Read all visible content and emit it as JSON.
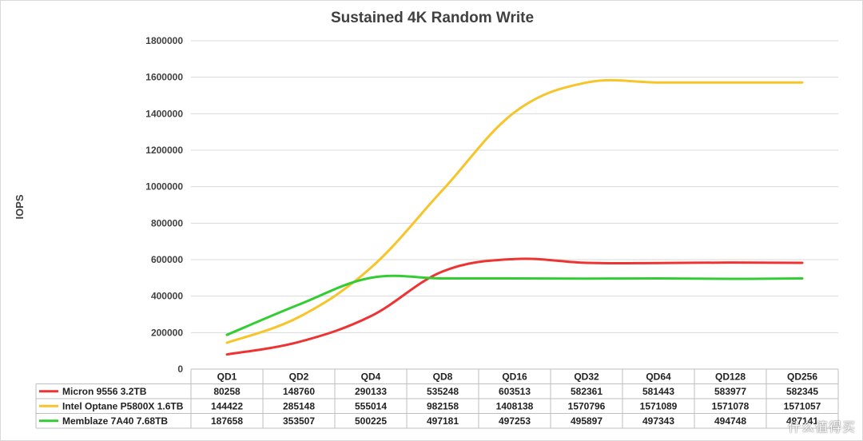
{
  "chart_data": {
    "type": "line",
    "title": "Sustained 4K Random Write",
    "xlabel": "",
    "ylabel": "IOPS",
    "ylim": [
      0,
      1800000
    ],
    "yticks": [
      0,
      200000,
      400000,
      600000,
      800000,
      1000000,
      1200000,
      1400000,
      1600000,
      1800000
    ],
    "grid": true,
    "legend": "data-table-left",
    "categories": [
      "QD1",
      "QD2",
      "QD4",
      "QD8",
      "QD16",
      "QD32",
      "QD64",
      "QD128",
      "QD256"
    ],
    "series": [
      {
        "name": "Micron 9556 3.2TB",
        "color": "#ee3333",
        "values": [
          80258,
          148760,
          290133,
          535248,
          603513,
          582361,
          581443,
          583977,
          582345
        ]
      },
      {
        "name": "Intel Optane P5800X 1.6TB",
        "color": "#f7c42a",
        "values": [
          144422,
          285148,
          555014,
          982158,
          1408138,
          1570796,
          1571089,
          1571078,
          1571057
        ]
      },
      {
        "name": "Memblaze 7A40 7.68TB",
        "color": "#33cc33",
        "values": [
          187658,
          353507,
          500225,
          497181,
          497253,
          495897,
          497343,
          494748,
          497141
        ]
      }
    ]
  },
  "watermark": "什么值得买"
}
